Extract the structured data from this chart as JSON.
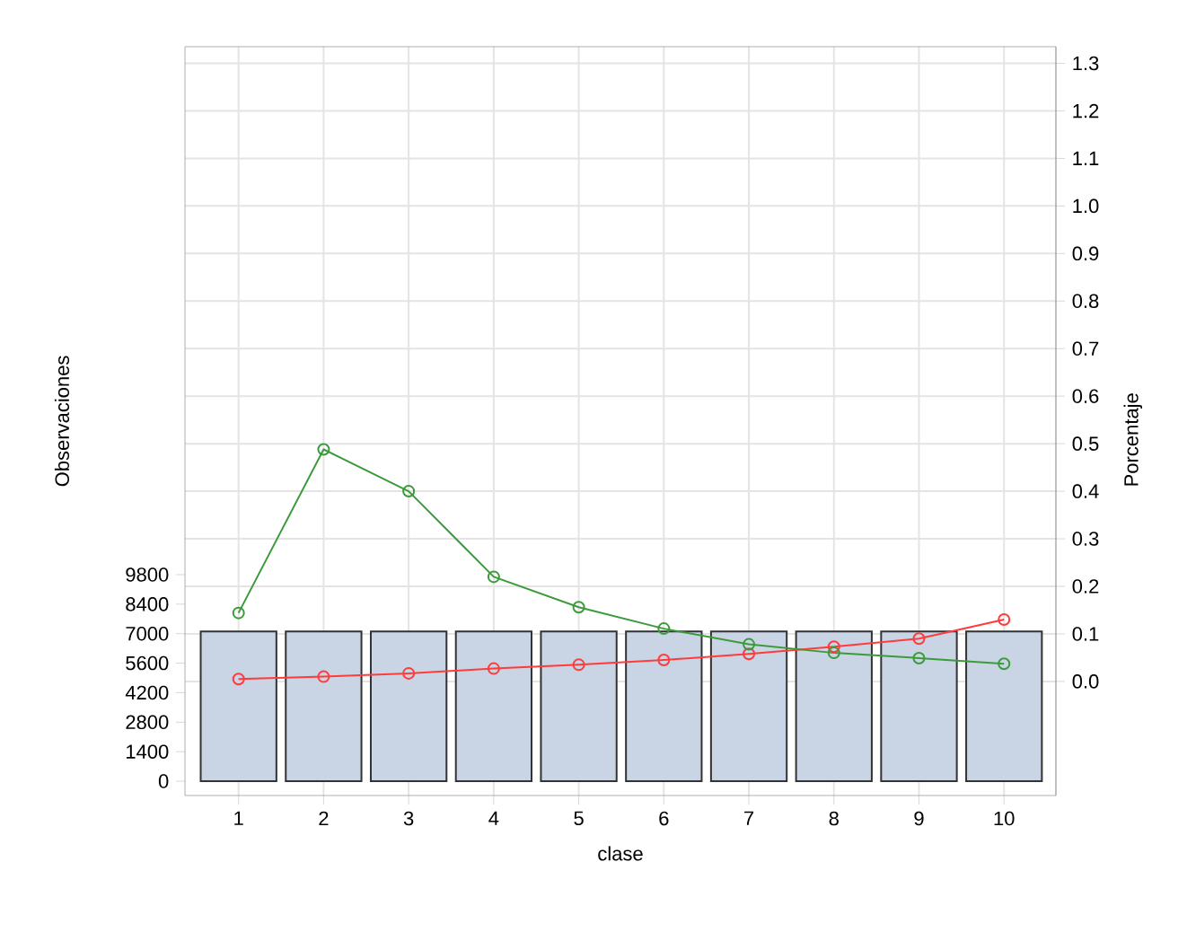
{
  "chart_data": {
    "type": "bar",
    "xlabel": "clase",
    "ylabel": "Observaciones",
    "y2label": "Porcentaje",
    "categories": [
      "1",
      "2",
      "3",
      "4",
      "5",
      "6",
      "7",
      "8",
      "9",
      "10"
    ],
    "ylim": [
      -680,
      34850
    ],
    "yticks": [
      0,
      1400,
      2800,
      4200,
      5600,
      7000,
      8400,
      9800
    ],
    "y2lim": [
      -0.24,
      1.335
    ],
    "y2ticks": [
      {
        "value": 0,
        "label": "0.0"
      },
      0.1,
      0.2,
      0.3,
      0.4,
      0.5,
      0.6,
      0.7,
      0.8,
      0.9,
      {
        "value": 1,
        "label": "1.0"
      },
      1.1,
      1.2,
      1.3
    ],
    "grid": true,
    "marker": "circle",
    "line_style": "solid",
    "series": [
      {
        "color": "#c9d4e4",
        "values": [
          7100,
          7100,
          7100,
          7100,
          7100,
          7100,
          7100,
          7100,
          7100,
          7100
        ]
      },
      {
        "type": "line",
        "axis": "y2",
        "color": "#ff3b3b",
        "values": [
          0.005,
          0.01,
          0.017,
          0.027,
          0.035,
          0.045,
          0.058,
          0.073,
          0.09,
          0.13
        ]
      },
      {
        "type": "line",
        "axis": "y2",
        "color": "#3b9b3b",
        "values": [
          0.144,
          0.488,
          0.4,
          0.22,
          0.156,
          0.111,
          0.078,
          0.06,
          0.049,
          0.037
        ]
      }
    ]
  }
}
